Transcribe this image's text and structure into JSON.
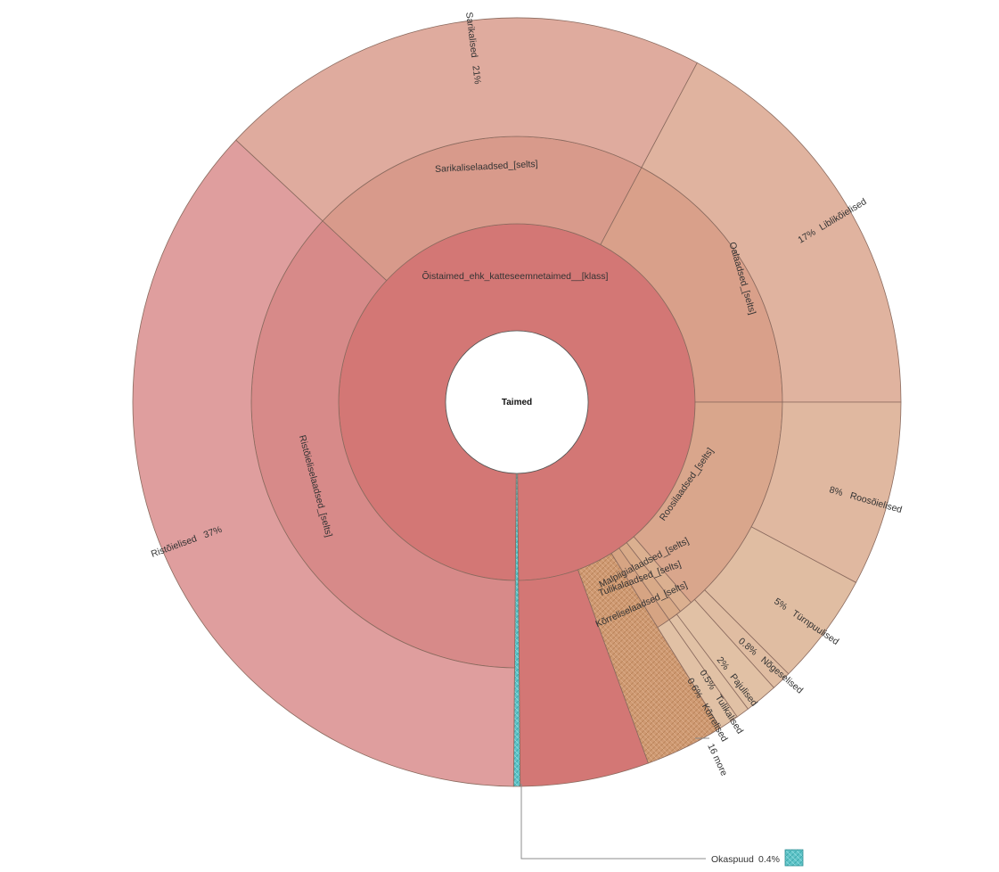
{
  "chart_data": {
    "type": "sunburst",
    "root": "Taimed",
    "classes": [
      {
        "id": "oistaimed",
        "name": "Õistaimed_ehk_katteseemnetaimed__[klass]",
        "color": "#d37775",
        "orders": [
          {
            "id": "sarikalise",
            "name": "Sarikaliselaadsed_[selts]",
            "color": "#d89a8b",
            "families": [
              {
                "name": "Sarikalised",
                "pct": 21,
                "color": "#dfab9e",
                "show": true
              }
            ]
          },
          {
            "id": "oalaadsed",
            "name": "Oalaadsed_[selts]",
            "color": "#d9a08a",
            "families": [
              {
                "name": "Liblikõielised",
                "pct": 17,
                "color": "#e0b39f",
                "show": true
              }
            ]
          },
          {
            "id": "roosi",
            "name": "Roosilaadsed_[selts]",
            "color": "#d9a68c",
            "families": [
              {
                "name": "Roosõielised",
                "pct": 8,
                "color": "#e0b8a0",
                "show": true
              },
              {
                "name": "Türnpuulised",
                "pct": 5,
                "color": "#e0bda2",
                "show": true
              },
              {
                "name": "Nõgeselised",
                "pct": 0.8,
                "color": "#e0bda2",
                "show": true
              }
            ]
          },
          {
            "id": "malpiigia",
            "name": "Malpiigialaadsed_[selts]",
            "color": "#dbb090",
            "families": [
              {
                "name": "Pajulised",
                "pct": 2,
                "color": "#e1c1a5",
                "show": true
              }
            ]
          },
          {
            "id": "tulika",
            "name": "Tulikalaadsed_[selts]",
            "color": "#d8aa88",
            "families": [
              {
                "name": "Tulikalised",
                "pct": 0.5,
                "color": "#e1c1a5",
                "show": true
              }
            ]
          },
          {
            "id": "korrelise",
            "name": "Kõrreliselaadsed_[selts]",
            "color": "#d6a483",
            "families": [
              {
                "name": "Kõrrelised",
                "pct": 0.6,
                "color": "#e1c1a5",
                "show": true
              }
            ]
          },
          {
            "id": "more_orders",
            "name": "",
            "pct": 2.8,
            "color": "#cf9a73",
            "hatch": true,
            "families": []
          },
          {
            "id": "unranked",
            "name": "",
            "color": "#d37775",
            "families": []
          }
        ]
      },
      {
        "id": "okaspuud",
        "name": "Okaspuud",
        "pct": 0.4,
        "color": "#5fc4c8",
        "hatch": true,
        "orders": []
      }
    ],
    "families_other": {
      "label": "16 more"
    },
    "callout": {
      "name": "Okaspuud",
      "pct_label": "0.4%"
    },
    "labels": {
      "root": "Taimed",
      "class_main": "Õistaimed_ehk_katteseemnetaimed__[klass]",
      "o_sarikalise": "Sarikaliselaadsed_[selts]",
      "o_oalaadsed": "Oalaadsed_[selts]",
      "o_ristoie": "Ristõieliselaadsed_[selts]",
      "o_roosi": "Roosilaadsed_[selts]",
      "o_malpiigia": "Malpiigialaadsed_[selts]",
      "o_tulika": "Tulikalaadsed_[selts]",
      "o_korrelise": "Kõrreliselaadsed_[selts]",
      "f_sarikalised": "Sarikalised",
      "p_sarikalised": "21%",
      "f_liblikoielised": "Liblikõielised",
      "p_liblikoielised": "17%",
      "f_ristoielised": "Ristõielised",
      "p_ristoielised": "37%",
      "f_roosoielised": "Roosõielised",
      "p_roosoielised": "8%",
      "f_turnpuulised": "Türnpuulised",
      "p_turnpuulised": "5%",
      "f_nogeselised": "Nõgeselised",
      "p_nogeselised": "0.8%",
      "f_pajulised": "Pajulised",
      "p_pajulised": "2%",
      "f_tulikalised": "Tulikalised",
      "p_tulikalised": "0.5%",
      "f_korrelised": "Kõrrelised",
      "p_korrelised": "0.6%",
      "more_families": "16 more",
      "callout_name": "Okaspuud",
      "callout_pct": "0.4%"
    },
    "extra_order": {
      "id": "ristoie",
      "name": "Ristõieliselaadsed_[selts]",
      "color": "#d78a89",
      "families": [
        {
          "name": "Ristõielised",
          "pct": 37,
          "color": "#df9e9e",
          "show": true
        }
      ]
    }
  }
}
